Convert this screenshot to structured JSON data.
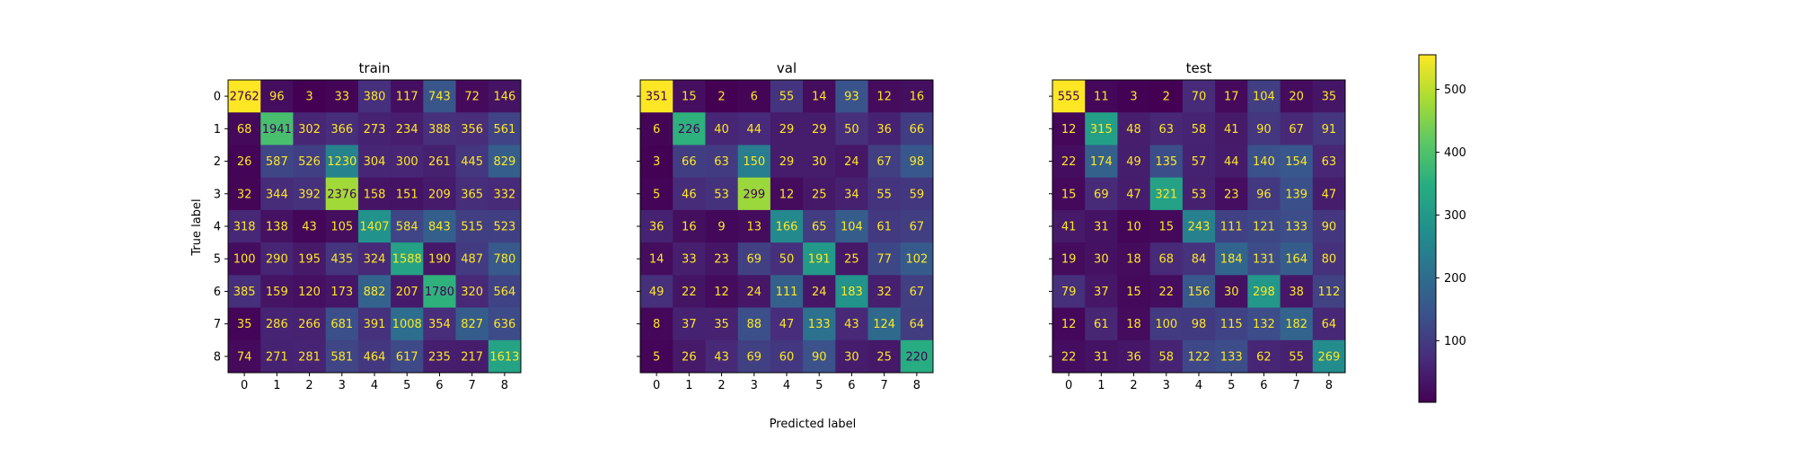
{
  "figure": {
    "xlabel": "Predicted label",
    "ylabel": "True label"
  },
  "colorbar": {
    "colormap": "viridis",
    "vmin": 2,
    "vmax": 555,
    "ticks": [
      100,
      200,
      300,
      400,
      500
    ]
  },
  "chart_data": [
    {
      "type": "heatmap",
      "title": "train",
      "categories": [
        "0",
        "1",
        "2",
        "3",
        "4",
        "5",
        "6",
        "7",
        "8"
      ],
      "xlabel": "",
      "ylabel": "True label",
      "values": [
        [
          2762,
          96,
          3,
          33,
          380,
          117,
          743,
          72,
          146
        ],
        [
          68,
          1941,
          302,
          366,
          273,
          234,
          388,
          356,
          561
        ],
        [
          26,
          587,
          526,
          1230,
          304,
          300,
          261,
          445,
          829
        ],
        [
          32,
          344,
          392,
          2376,
          158,
          151,
          209,
          365,
          332
        ],
        [
          318,
          138,
          43,
          105,
          1407,
          584,
          843,
          515,
          523
        ],
        [
          100,
          290,
          195,
          435,
          324,
          1588,
          190,
          487,
          780
        ],
        [
          385,
          159,
          120,
          173,
          882,
          207,
          1780,
          320,
          564
        ],
        [
          35,
          286,
          266,
          681,
          391,
          1008,
          354,
          827,
          636
        ],
        [
          74,
          271,
          281,
          581,
          464,
          617,
          235,
          217,
          1613
        ]
      ]
    },
    {
      "type": "heatmap",
      "title": "val",
      "categories": [
        "0",
        "1",
        "2",
        "3",
        "4",
        "5",
        "6",
        "7",
        "8"
      ],
      "xlabel": "Predicted label",
      "ylabel": "",
      "values": [
        [
          351,
          15,
          2,
          6,
          55,
          14,
          93,
          12,
          16
        ],
        [
          6,
          226,
          40,
          44,
          29,
          29,
          50,
          36,
          66
        ],
        [
          3,
          66,
          63,
          150,
          29,
          30,
          24,
          67,
          98
        ],
        [
          5,
          46,
          53,
          299,
          12,
          25,
          34,
          55,
          59
        ],
        [
          36,
          16,
          9,
          13,
          166,
          65,
          104,
          61,
          67
        ],
        [
          14,
          33,
          23,
          69,
          50,
          191,
          25,
          77,
          102
        ],
        [
          49,
          22,
          12,
          24,
          111,
          24,
          183,
          32,
          67
        ],
        [
          8,
          37,
          35,
          88,
          47,
          133,
          43,
          124,
          64
        ],
        [
          5,
          26,
          43,
          69,
          60,
          90,
          30,
          25,
          220
        ]
      ]
    },
    {
      "type": "heatmap",
      "title": "test",
      "categories": [
        "0",
        "1",
        "2",
        "3",
        "4",
        "5",
        "6",
        "7",
        "8"
      ],
      "xlabel": "",
      "ylabel": "",
      "values": [
        [
          555,
          11,
          3,
          2,
          70,
          17,
          104,
          20,
          35
        ],
        [
          12,
          315,
          48,
          63,
          58,
          41,
          90,
          67,
          91
        ],
        [
          22,
          174,
          49,
          135,
          57,
          44,
          140,
          154,
          63
        ],
        [
          15,
          69,
          47,
          321,
          53,
          23,
          96,
          139,
          47
        ],
        [
          41,
          31,
          10,
          15,
          243,
          111,
          121,
          133,
          90
        ],
        [
          19,
          30,
          18,
          68,
          84,
          184,
          131,
          164,
          80
        ],
        [
          79,
          37,
          15,
          22,
          156,
          30,
          298,
          38,
          112
        ],
        [
          12,
          61,
          18,
          100,
          98,
          115,
          132,
          182,
          64
        ],
        [
          22,
          31,
          36,
          58,
          122,
          133,
          62,
          55,
          269
        ]
      ]
    }
  ]
}
